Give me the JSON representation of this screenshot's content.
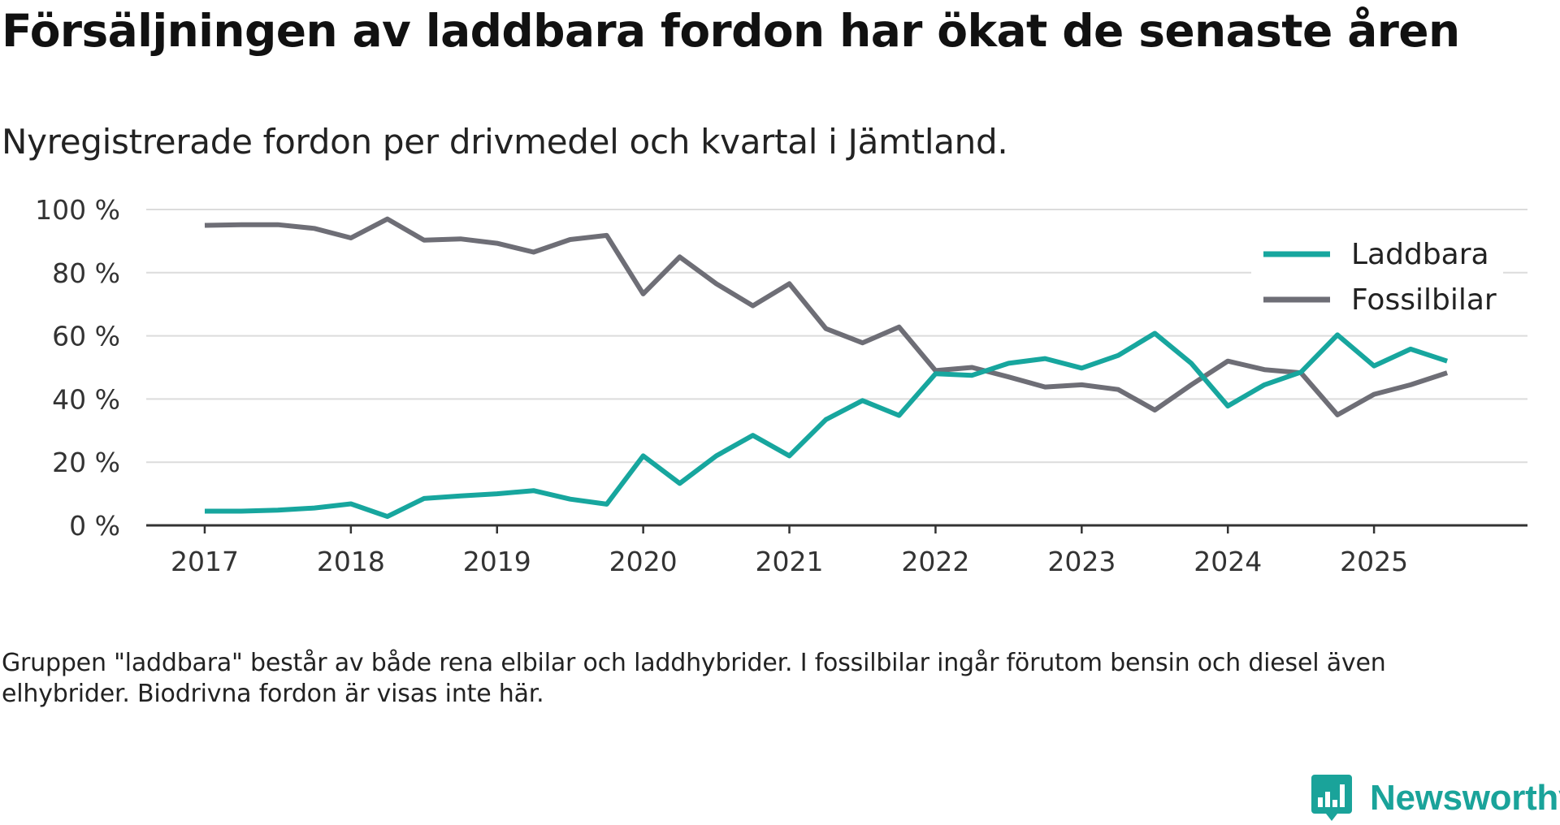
{
  "title": "Försäljningen av laddbara fordon har ökat de senaste åren",
  "subtitle": "Nyregistrerade fordon per drivmedel och kvartal i Jämtland.",
  "note": "Gruppen \"laddbara\" består av både rena elbilar och laddhybrider. I fossilbilar ingår förutom bensin och diesel även elhybrider. Biodrivna fordon är visas inte här.",
  "brand": {
    "name": "Newsworthy",
    "icon": "newsworthy-logo-icon"
  },
  "colors": {
    "laddbara": "#17a69e",
    "fossil": "#6e6e76",
    "grid": "#dcdcdc",
    "axis": "#333333"
  },
  "chart_data": {
    "type": "line",
    "title": "Försäljningen av laddbara fordon har ökat de senaste åren",
    "xlabel": "",
    "ylabel": "",
    "x_range": [
      2016.6,
      2026.05
    ],
    "ylim": [
      0,
      100
    ],
    "y_ticks": [
      0,
      20,
      40,
      60,
      80,
      100
    ],
    "y_tick_labels": [
      "0 %",
      "20 %",
      "40 %",
      "60 %",
      "80 %",
      "100 %"
    ],
    "x_ticks": [
      2017,
      2018,
      2019,
      2020,
      2021,
      2022,
      2023,
      2024,
      2025
    ],
    "x_tick_labels": [
      "2017",
      "2018",
      "2019",
      "2020",
      "2021",
      "2022",
      "2023",
      "2024",
      "2025"
    ],
    "legend_position": "top-right",
    "x": [
      2017,
      2017.25,
      2017.5,
      2017.75,
      2018,
      2018.25,
      2018.5,
      2018.75,
      2019,
      2019.25,
      2019.5,
      2019.75,
      2020,
      2020.25,
      2020.5,
      2020.75,
      2021,
      2021.25,
      2021.5,
      2021.75,
      2022,
      2022.25,
      2022.5,
      2022.75,
      2023,
      2023.25,
      2023.5,
      2023.75,
      2024,
      2024.25,
      2024.5,
      2024.75,
      2025,
      2025.25,
      2025.5
    ],
    "series": [
      {
        "name": "Laddbara",
        "color": "#17a69e",
        "values": [
          4.5,
          4.5,
          4.8,
          5.5,
          6.8,
          2.8,
          8.5,
          9.3,
          10.0,
          11.0,
          8.3,
          6.7,
          22.0,
          13.3,
          22.0,
          28.5,
          22.0,
          33.5,
          39.5,
          34.8,
          48.0,
          47.5,
          51.3,
          52.8,
          49.8,
          53.8,
          60.8,
          51.3,
          37.8,
          44.5,
          48.5,
          60.3,
          50.5,
          55.8,
          52.0
        ]
      },
      {
        "name": "Fossilbilar",
        "color": "#6e6e76",
        "values": [
          95.0,
          95.2,
          95.2,
          94.0,
          91.0,
          97.0,
          90.3,
          90.7,
          89.3,
          86.5,
          90.5,
          91.8,
          73.3,
          85.0,
          76.5,
          69.5,
          76.5,
          62.3,
          57.8,
          62.8,
          49.0,
          50.0,
          47.0,
          43.8,
          44.5,
          43.0,
          36.5,
          44.5,
          52.0,
          49.3,
          48.3,
          35.0,
          41.5,
          44.5,
          48.3
        ]
      }
    ]
  }
}
